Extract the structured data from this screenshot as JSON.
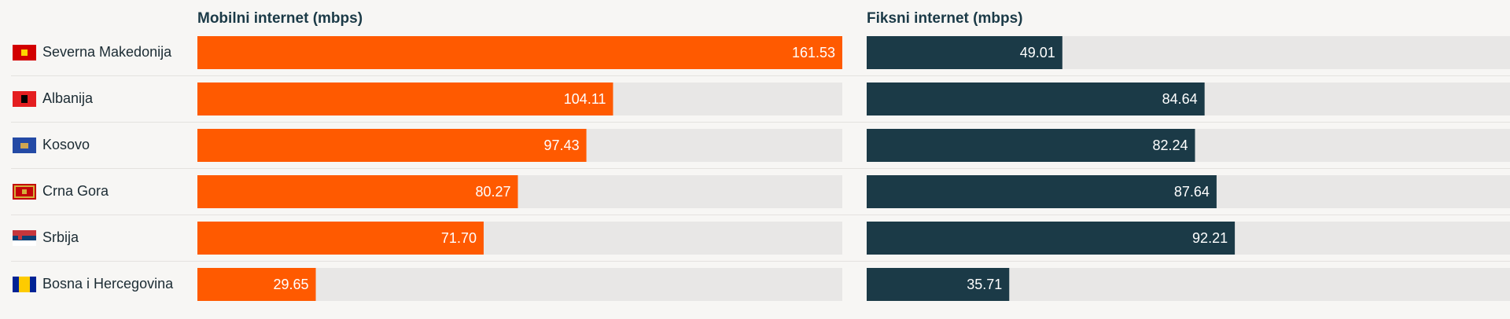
{
  "chart_data": {
    "type": "bar",
    "orientation": "horizontal",
    "categories": [
      "Severna Makedonija",
      "Albanija",
      "Kosovo",
      "Crna Gora",
      "Srbija",
      "Bosna i Hercegovina"
    ],
    "xlim": [
      0,
      161.53
    ],
    "series": [
      {
        "name": "Mobilni internet (mbps)",
        "color": "#ff5a00",
        "values": [
          161.53,
          104.11,
          97.43,
          80.27,
          71.7,
          29.65
        ],
        "value_labels": [
          "161.53",
          "104.11",
          "97.43",
          "80.27",
          "71.70",
          "29.65"
        ]
      },
      {
        "name": "Fiksni internet (mbps)",
        "color": "#1b3a47",
        "values": [
          49.01,
          84.64,
          82.24,
          87.64,
          92.21,
          35.71
        ],
        "value_labels": [
          "49.01",
          "84.64",
          "82.24",
          "87.64",
          "92.21",
          "35.71"
        ]
      }
    ]
  }
}
